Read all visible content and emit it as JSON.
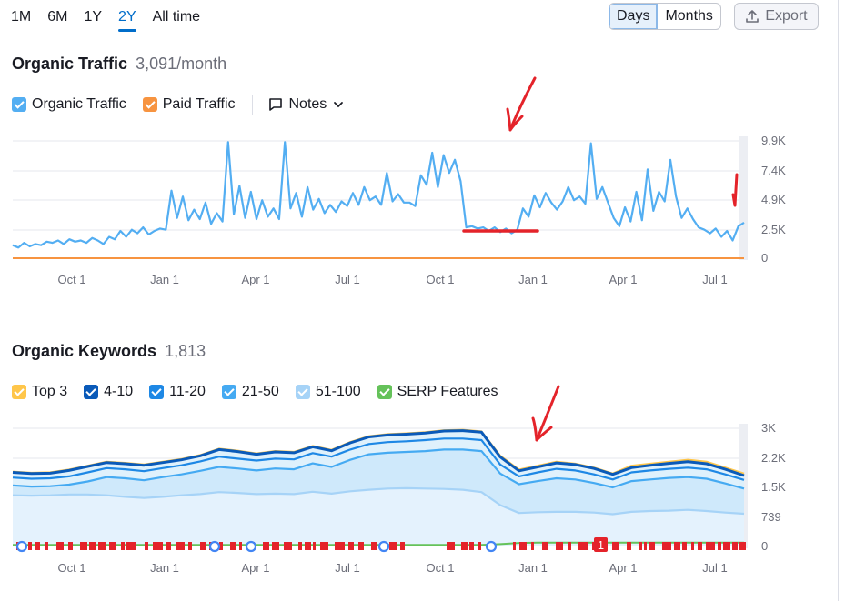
{
  "toolbar": {
    "ranges": [
      {
        "label": "1M",
        "active": false
      },
      {
        "label": "6M",
        "active": false
      },
      {
        "label": "1Y",
        "active": false
      },
      {
        "label": "2Y",
        "active": true
      },
      {
        "label": "All time",
        "active": false
      }
    ],
    "view_days": "Days",
    "view_months": "Months",
    "export_label": "Export"
  },
  "colors": {
    "organic": "#53aef2",
    "paid": "#f79440",
    "top3": "#ffc64a",
    "pos4_10": "#0a5ab9",
    "pos11_20": "#1e88e5",
    "pos21_50": "#45aaf2",
    "pos51_100": "#a6d3f7",
    "serp": "#65c25a",
    "annotation": "#e4232a"
  },
  "traffic": {
    "title": "Organic Traffic",
    "value": "3,091/month",
    "legend": {
      "organic": "Organic Traffic",
      "paid": "Paid Traffic",
      "notes": "Notes"
    }
  },
  "keywords": {
    "title": "Organic Keywords",
    "value": "1,813",
    "legend": [
      "Top 3",
      "4-10",
      "11-20",
      "21-50",
      "51-100",
      "SERP Features"
    ]
  },
  "chart_data": [
    {
      "type": "line",
      "title": "Organic Traffic",
      "x_ticks": [
        "Oct 1",
        "Jan 1",
        "Apr 1",
        "Jul 1",
        "Oct 1",
        "Jan 1",
        "Apr 1",
        "Jul 1"
      ],
      "y_ticks": [
        "9.9K",
        "7.4K",
        "4.9K",
        "2.5K",
        "0"
      ],
      "ylim": [
        0,
        9900
      ],
      "series": [
        {
          "name": "Organic Traffic",
          "values": [
            1100,
            900,
            1300,
            1000,
            1200,
            1100,
            1400,
            1300,
            1500,
            1200,
            1600,
            1400,
            1500,
            1300,
            1700,
            1500,
            1200,
            1800,
            1600,
            2300,
            1800,
            2400,
            2100,
            2600,
            2000,
            2300,
            2500,
            2400,
            5700,
            3400,
            5200,
            3200,
            4100,
            3300,
            4700,
            2900,
            3800,
            3100,
            9800,
            3700,
            6100,
            3400,
            5600,
            3300,
            4900,
            3500,
            4200,
            3300,
            9800,
            4200,
            5500,
            3500,
            6000,
            4100,
            5000,
            3800,
            4500,
            3900,
            4800,
            4400,
            5500,
            4500,
            6000,
            4900,
            5200,
            4500,
            7200,
            4800,
            5400,
            4700,
            4700,
            4400,
            7000,
            6200,
            8900,
            6000,
            8700,
            7200,
            8300,
            6500,
            2600,
            2700,
            2500,
            2600,
            2300,
            2600,
            2200,
            2500,
            2100,
            2400,
            4200,
            3500,
            5300,
            4300,
            5500,
            4700,
            4100,
            4800,
            6000,
            4900,
            5200,
            4600,
            9700,
            5000,
            6000,
            4700,
            3400,
            2700,
            4300,
            3100,
            5600,
            3200,
            7500,
            4000,
            5600,
            4800,
            8300,
            5200,
            3400,
            4200,
            3300,
            2600,
            2400,
            2100,
            2500,
            1800,
            2300,
            1500,
            2700,
            3000
          ],
          "note": "organic traffic daily estimate"
        },
        {
          "name": "Paid Traffic",
          "values": [
            0,
            0
          ]
        }
      ]
    },
    {
      "type": "area",
      "title": "Organic Keywords",
      "x_ticks": [
        "Oct 1",
        "Jan 1",
        "Apr 1",
        "Jul 1",
        "Oct 1",
        "Jan 1",
        "Apr 1",
        "Jul 1"
      ],
      "y_ticks": [
        "3K",
        "2.2K",
        "1.5K",
        "739",
        "0"
      ],
      "ylim": [
        0,
        3000
      ],
      "series": [
        {
          "name": "Top 3",
          "values": [
            1900,
            1870,
            1880,
            1950,
            2050,
            2150,
            2120,
            2080,
            2150,
            2220,
            2320,
            2480,
            2430,
            2360,
            2420,
            2400,
            2550,
            2450,
            2650,
            2800,
            2850,
            2870,
            2900,
            2950,
            2960,
            2920,
            2300,
            1950,
            2050,
            2150,
            2100,
            2000,
            1850,
            2050,
            2100,
            2150,
            2200,
            2150,
            2000,
            1850
          ]
        },
        {
          "name": "4-10",
          "values": [
            1880,
            1850,
            1860,
            1930,
            2030,
            2130,
            2100,
            2060,
            2130,
            2200,
            2300,
            2460,
            2410,
            2340,
            2400,
            2380,
            2530,
            2430,
            2630,
            2780,
            2830,
            2850,
            2880,
            2930,
            2940,
            2900,
            2270,
            1920,
            2020,
            2120,
            2080,
            1980,
            1830,
            2000,
            2060,
            2110,
            2150,
            2100,
            1960,
            1800
          ]
        },
        {
          "name": "11-20",
          "values": [
            1750,
            1720,
            1730,
            1780,
            1880,
            1990,
            1960,
            1910,
            1990,
            2060,
            2160,
            2280,
            2230,
            2180,
            2230,
            2210,
            2370,
            2280,
            2460,
            2600,
            2650,
            2670,
            2700,
            2740,
            2740,
            2700,
            2080,
            1780,
            1880,
            1970,
            1930,
            1830,
            1700,
            1880,
            1930,
            1970,
            2000,
            1960,
            1830,
            1690
          ]
        },
        {
          "name": "21-50",
          "values": [
            1550,
            1520,
            1530,
            1570,
            1650,
            1760,
            1730,
            1680,
            1760,
            1830,
            1920,
            2020,
            1980,
            1930,
            1980,
            1960,
            2110,
            2020,
            2200,
            2340,
            2380,
            2400,
            2420,
            2460,
            2460,
            2420,
            1850,
            1580,
            1660,
            1730,
            1700,
            1610,
            1500,
            1660,
            1700,
            1740,
            1760,
            1720,
            1600,
            1470
          ]
        },
        {
          "name": "51-100",
          "values": [
            1300,
            1290,
            1300,
            1320,
            1320,
            1300,
            1260,
            1230,
            1260,
            1300,
            1330,
            1380,
            1360,
            1330,
            1340,
            1330,
            1390,
            1340,
            1400,
            1440,
            1470,
            1480,
            1470,
            1460,
            1440,
            1380,
            1050,
            850,
            870,
            880,
            880,
            860,
            820,
            880,
            900,
            910,
            930,
            900,
            860,
            830
          ]
        },
        {
          "name": "SERP Features",
          "values": [
            40,
            40,
            40,
            40,
            40,
            40,
            40,
            40,
            40,
            40,
            40,
            40,
            40,
            40,
            40,
            40,
            40,
            40,
            40,
            40,
            40,
            40,
            40,
            40,
            40,
            40,
            60,
            90,
            100,
            100,
            100,
            100,
            100,
            100,
            100,
            100,
            100,
            100,
            100,
            100
          ]
        }
      ]
    }
  ]
}
